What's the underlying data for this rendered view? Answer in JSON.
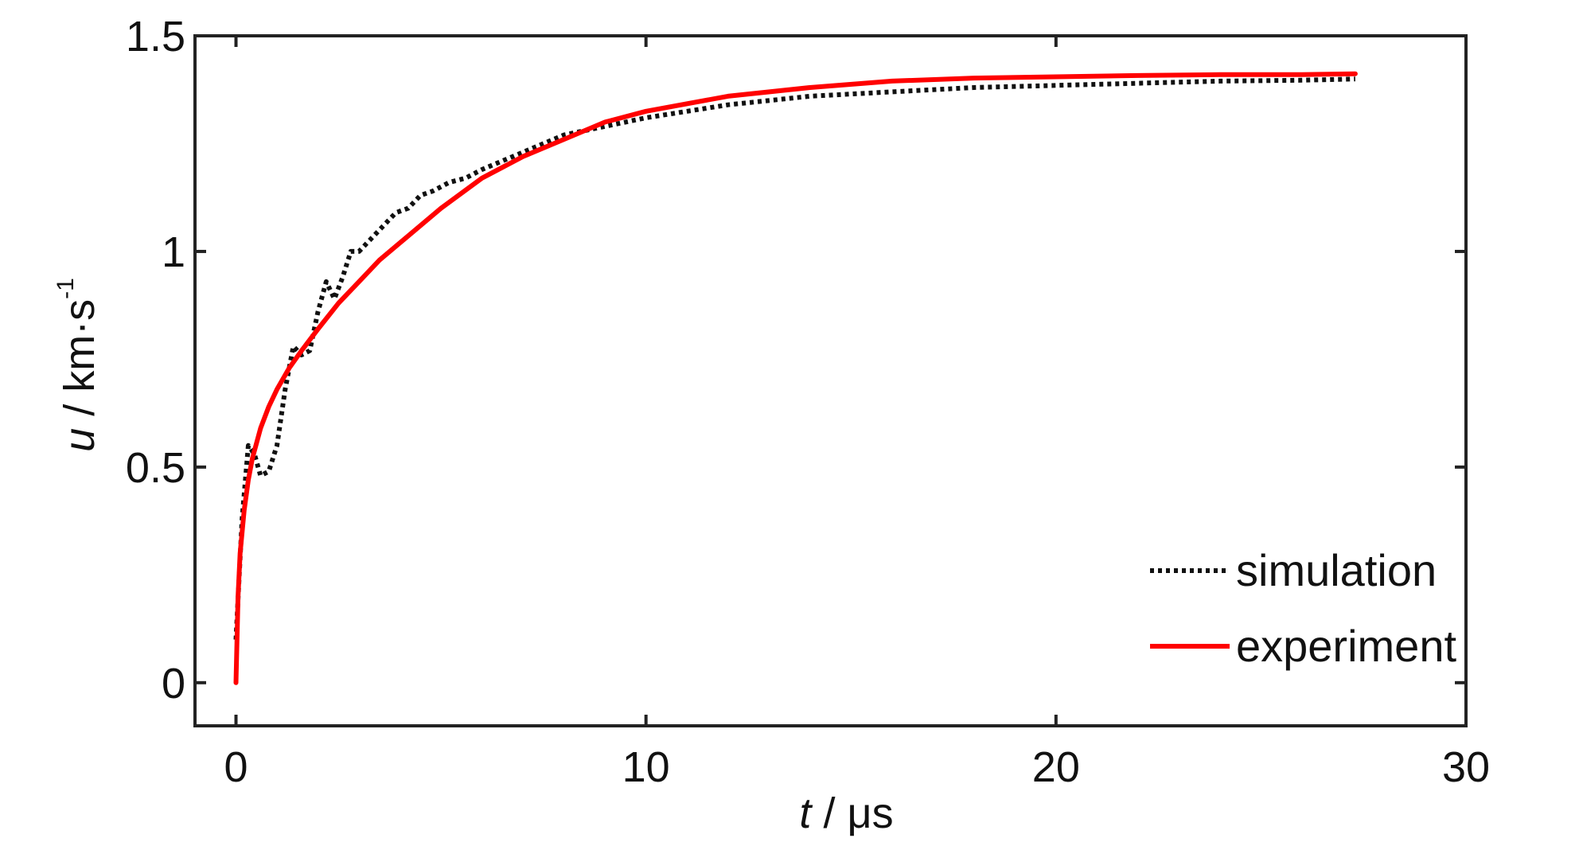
{
  "chart_data": {
    "type": "line",
    "xlim": [
      -1,
      30
    ],
    "ylim": [
      -0.1,
      1.5
    ],
    "x_ticks": [
      0,
      10,
      20,
      30
    ],
    "x_tick_labels": [
      "0",
      "10",
      "20",
      "30"
    ],
    "y_ticks": [
      0,
      0.5,
      1,
      1.5
    ],
    "y_tick_labels": [
      "0",
      "0.5",
      "1",
      "1.5"
    ],
    "xlabel": {
      "var": "t",
      "sep": " / ",
      "unit": "μs"
    },
    "ylabel": {
      "var": "u",
      "sep": " / ",
      "unit": "km·s",
      "sup": "-1"
    },
    "grid": false,
    "legend_position": "bottom-right",
    "series": [
      {
        "name": "simulation",
        "color": "#111111",
        "style": "dotted",
        "x": [
          0,
          0.15,
          0.3,
          0.45,
          0.6,
          0.8,
          1.0,
          1.2,
          1.4,
          1.6,
          1.8,
          2.0,
          2.2,
          2.4,
          2.6,
          2.8,
          3.0,
          3.3,
          3.6,
          3.9,
          4.2,
          4.5,
          4.8,
          5.2,
          5.6,
          6,
          7,
          8,
          9,
          10,
          12,
          14,
          16,
          18,
          20,
          22,
          24,
          26,
          27.3
        ],
        "y": [
          0.1,
          0.38,
          0.55,
          0.53,
          0.48,
          0.49,
          0.55,
          0.68,
          0.78,
          0.76,
          0.77,
          0.86,
          0.93,
          0.89,
          0.94,
          1.0,
          1.0,
          1.03,
          1.06,
          1.09,
          1.1,
          1.13,
          1.14,
          1.16,
          1.17,
          1.19,
          1.23,
          1.27,
          1.29,
          1.31,
          1.34,
          1.36,
          1.37,
          1.38,
          1.385,
          1.39,
          1.395,
          1.397,
          1.4
        ]
      },
      {
        "name": "experiment",
        "color": "#ff0000",
        "style": "solid",
        "x": [
          0,
          0.05,
          0.1,
          0.2,
          0.3,
          0.4,
          0.6,
          0.8,
          1.0,
          1.3,
          1.6,
          2.0,
          2.5,
          3.0,
          3.5,
          4.0,
          5.0,
          6.0,
          7.0,
          8.0,
          9.0,
          10,
          12,
          14,
          16,
          18,
          20,
          22,
          24,
          26,
          27.3
        ],
        "y": [
          0,
          0.2,
          0.3,
          0.4,
          0.47,
          0.52,
          0.59,
          0.64,
          0.68,
          0.73,
          0.77,
          0.82,
          0.88,
          0.93,
          0.98,
          1.02,
          1.1,
          1.17,
          1.22,
          1.26,
          1.3,
          1.325,
          1.36,
          1.38,
          1.395,
          1.402,
          1.405,
          1.408,
          1.41,
          1.41,
          1.412
        ]
      }
    ]
  }
}
